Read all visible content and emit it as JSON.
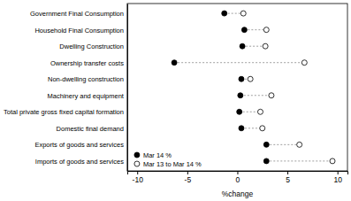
{
  "chart_data": {
    "type": "dot",
    "orientation": "horizontal",
    "x_label": "%change",
    "categories": [
      "Government Final Consumption",
      "Household Final Consumption",
      "Dwelling Construction",
      "Ownership transfer costs",
      "Non-dwelling construction",
      "Machinery and equipment",
      "Total private gross fixed capital formation",
      "Domestic final demand",
      "Exports of goods and services",
      "Imports of goods and services"
    ],
    "series": [
      {
        "name": "Mar 14 %",
        "color": "#000000",
        "marker": "filled",
        "values": [
          -1.3,
          0.7,
          0.5,
          -6.3,
          0.4,
          0.3,
          0.2,
          0.4,
          2.9,
          2.9
        ]
      },
      {
        "name": "Mar 13 to Mar 14 %",
        "color": "#000000",
        "marker": "open",
        "values": [
          0.6,
          2.9,
          2.8,
          6.7,
          1.3,
          3.4,
          2.3,
          2.5,
          6.2,
          9.5
        ]
      }
    ],
    "xlim": [
      -11,
      11
    ],
    "xticks": [
      -10,
      -5,
      0,
      5,
      10
    ],
    "legend": "lower left"
  }
}
